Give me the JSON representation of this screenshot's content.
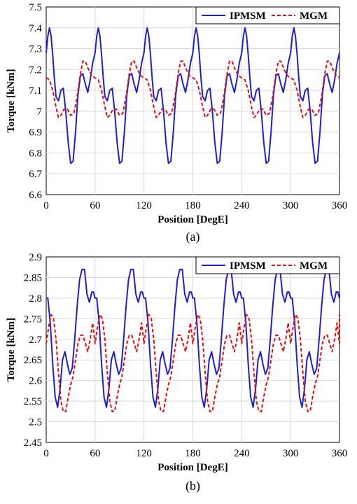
{
  "chart_data": [
    {
      "type": "line",
      "caption": "(a)",
      "xlabel": "Position [DegE]",
      "ylabel": "Torque [kNm]",
      "xlim": [
        0,
        360
      ],
      "ylim": [
        6.6,
        7.5
      ],
      "xticks": [
        0,
        60,
        120,
        180,
        240,
        300,
        360
      ],
      "xtick_labels": [
        "0",
        "60",
        "120",
        "180",
        "240",
        "300",
        "360"
      ],
      "yticks": [
        6.6,
        6.7,
        6.8,
        6.9,
        7.0,
        7.1,
        7.2,
        7.3,
        7.4,
        7.5
      ],
      "ytick_labels": [
        "6.6",
        "6.7",
        "6.8",
        "6.9",
        "7",
        "7.1",
        "7.2",
        "7.3",
        "7.4",
        "7.5"
      ],
      "legend_position": "top-right",
      "series": [
        {
          "name": "IPMSM",
          "color": "#1f1fd0",
          "style": "solid",
          "x": [
            0,
            2,
            4,
            6,
            8,
            10,
            12,
            15,
            18,
            21,
            24,
            27,
            30,
            33,
            36,
            39,
            42,
            45,
            48,
            51,
            54,
            57,
            60
          ],
          "y": [
            7.28,
            7.36,
            7.4,
            7.36,
            7.27,
            7.16,
            7.07,
            7.05,
            7.1,
            7.11,
            7.0,
            6.85,
            6.75,
            6.76,
            6.9,
            7.08,
            7.17,
            7.18,
            7.13,
            7.09,
            7.15,
            7.23,
            7.28
          ]
        },
        {
          "name": "MGM",
          "color": "#e01010",
          "style": "dashed",
          "x": [
            0,
            4,
            8,
            12,
            15,
            18,
            22,
            26,
            30,
            34,
            38,
            42,
            45,
            48,
            52,
            56,
            60
          ],
          "y": [
            7.16,
            7.15,
            7.1,
            7.02,
            6.97,
            6.98,
            7.01,
            7.01,
            6.98,
            6.99,
            7.07,
            7.18,
            7.24,
            7.24,
            7.2,
            7.17,
            7.16
          ]
        }
      ]
    },
    {
      "type": "line",
      "caption": "(b)",
      "xlabel": "Position [DegE]",
      "ylabel": "Torque [kNm]",
      "xlim": [
        0,
        360
      ],
      "ylim": [
        2.45,
        2.9
      ],
      "xticks": [
        0,
        60,
        120,
        180,
        240,
        300,
        360
      ],
      "xtick_labels": [
        "0",
        "60",
        "120",
        "180",
        "240",
        "300",
        "360"
      ],
      "yticks": [
        2.45,
        2.5,
        2.55,
        2.6,
        2.65,
        2.7,
        2.75,
        2.8,
        2.85,
        2.9
      ],
      "ytick_labels": [
        "2.45",
        "2.5",
        "2.55",
        "2.6",
        "2.65",
        "2.7",
        "2.75",
        "2.8",
        "2.85",
        "2.9"
      ],
      "legend_position": "top-right",
      "series": [
        {
          "name": "IPMSM",
          "color": "#1f1fd0",
          "style": "solid",
          "x": [
            0,
            2,
            5,
            8,
            11,
            14,
            17,
            20,
            23,
            26,
            29,
            32,
            35,
            38,
            41,
            44,
            47,
            50,
            53,
            56,
            58,
            60
          ],
          "y": [
            2.8,
            2.8,
            2.74,
            2.64,
            2.56,
            2.535,
            2.58,
            2.65,
            2.67,
            2.64,
            2.615,
            2.63,
            2.7,
            2.78,
            2.845,
            2.87,
            2.87,
            2.81,
            2.79,
            2.815,
            2.815,
            2.81
          ]
        },
        {
          "name": "MGM",
          "color": "#e01010",
          "style": "dashed",
          "x": [
            0,
            3,
            6,
            9,
            12,
            15,
            18,
            21,
            24,
            27,
            30,
            33,
            36,
            39,
            42,
            45,
            48,
            51,
            54,
            57,
            60
          ],
          "y": [
            2.69,
            2.73,
            2.76,
            2.75,
            2.7,
            2.62,
            2.55,
            2.525,
            2.525,
            2.56,
            2.59,
            2.61,
            2.65,
            2.69,
            2.71,
            2.71,
            2.69,
            2.67,
            2.7,
            2.74,
            2.76
          ]
        }
      ]
    }
  ]
}
